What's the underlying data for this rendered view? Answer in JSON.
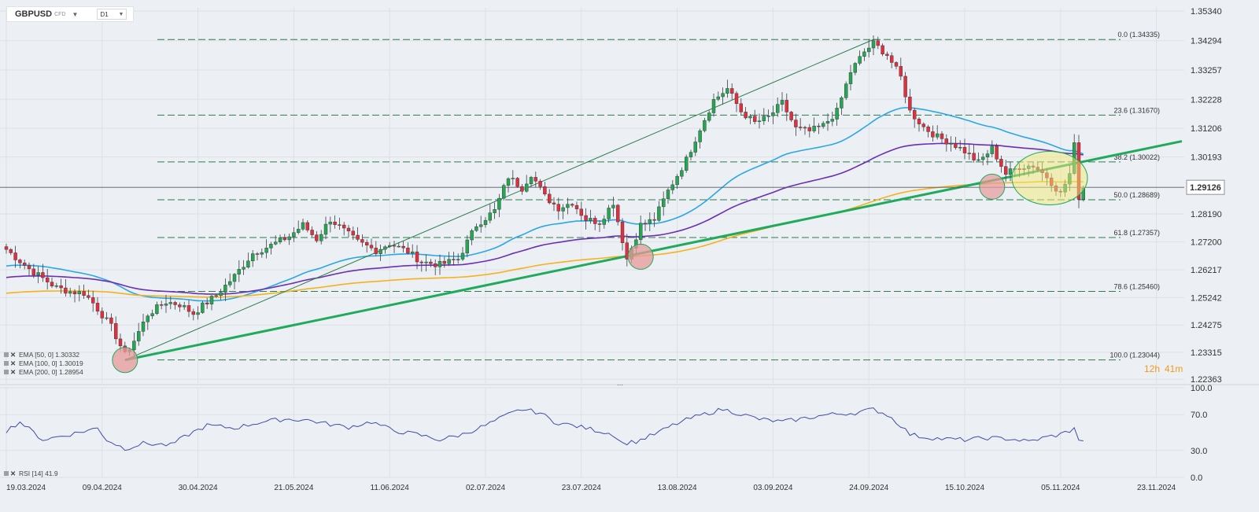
{
  "toolbar": {
    "symbol": "GBPUSD",
    "instrument_type": "CFD",
    "timeframe": "D1"
  },
  "chart_data": [
    {
      "type": "candlestick",
      "name": "price",
      "y_ticks": [
        "1.35340",
        "1.34294",
        "1.33257",
        "1.32228",
        "1.31206",
        "1.30193",
        "1.28190",
        "1.27200",
        "1.26217",
        "1.25242",
        "1.24275",
        "1.23315",
        "1.22363"
      ],
      "ylim": [
        1.2223,
        1.3545
      ],
      "x_tick_labels": [
        "19.03.2024",
        "09.04.2024",
        "30.04.2024",
        "21.05.2024",
        "11.06.2024",
        "02.07.2024",
        "23.07.2024",
        "13.08.2024",
        "03.09.2024",
        "24.09.2024",
        "15.10.2024",
        "05.11.2024",
        "23.11.2024"
      ],
      "current_price": "1.29126",
      "countdown": {
        "hours": "12h",
        "minutes": "41m"
      },
      "fibonacci": [
        {
          "label": "0.0 (1.34335)",
          "value": 1.34335
        },
        {
          "label": "23.6 (1.31670)",
          "value": 1.3167
        },
        {
          "label": "38.2 (1.30022)",
          "value": 1.30022
        },
        {
          "label": "50.0 (1.28689)",
          "value": 1.28689
        },
        {
          "label": "61.8 (1.27357)",
          "value": 1.27357
        },
        {
          "label": "78.6 (1.25460)",
          "value": 1.2546
        },
        {
          "label": "100.0 (1.23044)",
          "value": 1.23044
        }
      ],
      "indicators": [
        {
          "label": "EMA [50, 0] 1.30332",
          "color": "#2aa7e6"
        },
        {
          "label": "EMA [100, 0] 1.30019",
          "color": "#6a2fb5"
        },
        {
          "label": "EMA [200, 0] 1.28954",
          "color": "#f3b31d"
        }
      ],
      "trendline_color": "#1faa5c",
      "candle_up_color": "#27a552",
      "candle_down_color": "#e0303d",
      "anchor_points": [
        [
          0,
          1.2694
        ],
        [
          5,
          1.2625
        ],
        [
          11,
          1.2559
        ],
        [
          14,
          1.2545
        ],
        [
          17,
          1.254
        ],
        [
          19,
          1.2505
        ],
        [
          23,
          1.2421
        ],
        [
          26,
          1.2322
        ],
        [
          28,
          1.2373
        ],
        [
          31,
          1.2465
        ],
        [
          35,
          1.2509
        ],
        [
          38,
          1.25
        ],
        [
          41,
          1.2468
        ],
        [
          43,
          1.2495
        ],
        [
          46,
          1.2532
        ],
        [
          50,
          1.26
        ],
        [
          54,
          1.268
        ],
        [
          58,
          1.2708
        ],
        [
          62,
          1.274
        ],
        [
          65,
          1.278
        ],
        [
          68,
          1.273
        ],
        [
          71,
          1.28
        ],
        [
          74,
          1.276
        ],
        [
          77,
          1.272
        ],
        [
          81,
          1.269
        ],
        [
          84,
          1.2715
        ],
        [
          88,
          1.2686
        ],
        [
          91,
          1.265
        ],
        [
          95,
          1.264
        ],
        [
          99,
          1.266
        ],
        [
          103,
          1.278
        ],
        [
          107,
          1.283
        ],
        [
          110,
          1.295
        ],
        [
          113,
          1.291
        ],
        [
          115,
          1.296
        ],
        [
          118,
          1.288
        ],
        [
          121,
          1.284
        ],
        [
          124,
          1.286
        ],
        [
          127,
          1.28
        ],
        [
          130,
          1.279
        ],
        [
          133,
          1.286
        ],
        [
          136,
          1.266
        ],
        [
          139,
          1.278
        ],
        [
          142,
          1.28
        ],
        [
          145,
          1.29
        ],
        [
          149,
          1.301
        ],
        [
          152,
          1.312
        ],
        [
          155,
          1.322
        ],
        [
          158,
          1.326
        ],
        [
          161,
          1.318
        ],
        [
          164,
          1.314
        ],
        [
          167,
          1.316
        ],
        [
          170,
          1.321
        ],
        [
          173,
          1.312
        ],
        [
          176,
          1.311
        ],
        [
          179,
          1.313
        ],
        [
          182,
          1.318
        ],
        [
          185,
          1.332
        ],
        [
          188,
          1.339
        ],
        [
          190,
          1.342
        ],
        [
          193,
          1.338
        ],
        [
          196,
          1.33
        ],
        [
          198,
          1.318
        ],
        [
          201,
          1.3125
        ],
        [
          204,
          1.309
        ],
        [
          207,
          1.307
        ],
        [
          210,
          1.304
        ],
        [
          213,
          1.3
        ],
        [
          216,
          1.305
        ],
        [
          219,
          1.296
        ],
        [
          222,
          1.2985
        ],
        [
          225,
          1.299
        ],
        [
          228,
          1.295
        ],
        [
          231,
          1.289
        ],
        [
          233,
          1.296
        ],
        [
          234,
          1.306
        ],
        [
          235,
          1.288
        ],
        [
          236,
          1.2912
        ]
      ]
    },
    {
      "type": "line",
      "name": "RSI",
      "label": "RSI [14] 41.9",
      "y_ticks": [
        "100.0",
        "70.0",
        "30.0",
        "0.0"
      ],
      "ylim": [
        0,
        100
      ],
      "color": "#3f4ea8",
      "anchor_points": [
        [
          0,
          52
        ],
        [
          3,
          62
        ],
        [
          8,
          42
        ],
        [
          14,
          48
        ],
        [
          20,
          55
        ],
        [
          22,
          42
        ],
        [
          26,
          32
        ],
        [
          30,
          38
        ],
        [
          36,
          36
        ],
        [
          40,
          48
        ],
        [
          44,
          58
        ],
        [
          50,
          55
        ],
        [
          56,
          62
        ],
        [
          61,
          65
        ],
        [
          66,
          64
        ],
        [
          70,
          60
        ],
        [
          75,
          56
        ],
        [
          80,
          62
        ],
        [
          85,
          52
        ],
        [
          90,
          48
        ],
        [
          95,
          42
        ],
        [
          100,
          48
        ],
        [
          105,
          58
        ],
        [
          110,
          70
        ],
        [
          113,
          76
        ],
        [
          117,
          72
        ],
        [
          120,
          62
        ],
        [
          124,
          58
        ],
        [
          128,
          54
        ],
        [
          133,
          48
        ],
        [
          135,
          38
        ],
        [
          138,
          40
        ],
        [
          142,
          48
        ],
        [
          146,
          58
        ],
        [
          150,
          66
        ],
        [
          154,
          72
        ],
        [
          157,
          76
        ],
        [
          160,
          72
        ],
        [
          165,
          65
        ],
        [
          170,
          62
        ],
        [
          175,
          66
        ],
        [
          180,
          70
        ],
        [
          186,
          72
        ],
        [
          190,
          76
        ],
        [
          193,
          70
        ],
        [
          196,
          58
        ],
        [
          198,
          48
        ],
        [
          201,
          45
        ],
        [
          205,
          43
        ],
        [
          210,
          42
        ],
        [
          215,
          44
        ],
        [
          220,
          43
        ],
        [
          224,
          40
        ],
        [
          228,
          45
        ],
        [
          231,
          48
        ],
        [
          233,
          52
        ],
        [
          234,
          56
        ],
        [
          235,
          40
        ],
        [
          236,
          41.9
        ]
      ]
    }
  ]
}
